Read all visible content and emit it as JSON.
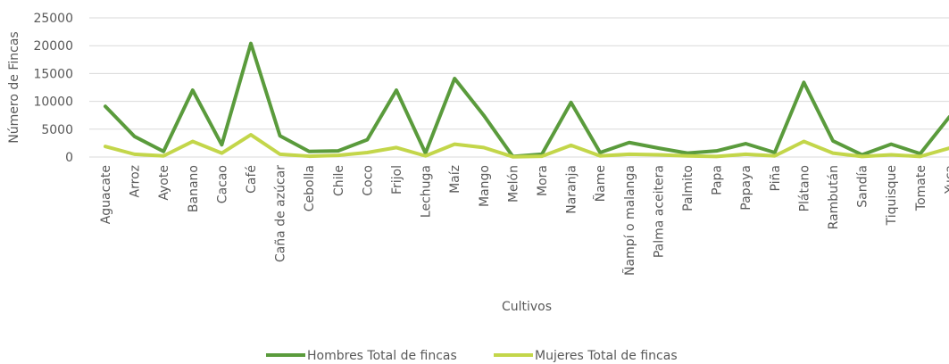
{
  "chart_data": {
    "type": "line",
    "x_label": "Cultivos",
    "y_label": "Número de Fincas",
    "categories": [
      "Aguacate",
      "Arroz",
      "Ayote",
      "Banano",
      "Cacao",
      "Café",
      "Caña de azúcar",
      "Cebolla",
      "Chile",
      "Coco",
      "Frijol",
      "Lechuga",
      "Maíz",
      "Mango",
      "Melón",
      "Mora",
      "Naranja",
      "Ñame",
      "Ñampí o malanga",
      "Palma aceitera",
      "Palmito",
      "Papa",
      "Papaya",
      "Piña",
      "Plátano",
      "Rambután",
      "Sandía",
      "Tiquisque",
      "Tomate",
      "Yuca"
    ],
    "series": [
      {
        "name": "Hombres Total de fincas",
        "color": "#5a9b3c",
        "values": [
          9100,
          3700,
          1000,
          12000,
          2200,
          20400,
          3800,
          1000,
          1100,
          3100,
          12000,
          700,
          14100,
          7500,
          100,
          500,
          9800,
          800,
          2600,
          1600,
          700,
          1100,
          2400,
          800,
          13400,
          2900,
          400,
          2300,
          600,
          7200
        ]
      },
      {
        "name": "Mujeres Total de fincas",
        "color": "#c3d64a",
        "values": [
          1900,
          500,
          200,
          2800,
          700,
          4000,
          500,
          150,
          300,
          800,
          1700,
          200,
          2300,
          1700,
          50,
          150,
          2100,
          200,
          500,
          400,
          200,
          100,
          500,
          200,
          2800,
          700,
          100,
          400,
          100,
          1600
        ]
      }
    ],
    "ylim": [
      0,
      25000
    ],
    "yticks": [
      0,
      5000,
      10000,
      15000,
      20000,
      25000
    ],
    "grid": true,
    "legend": "bottom"
  }
}
